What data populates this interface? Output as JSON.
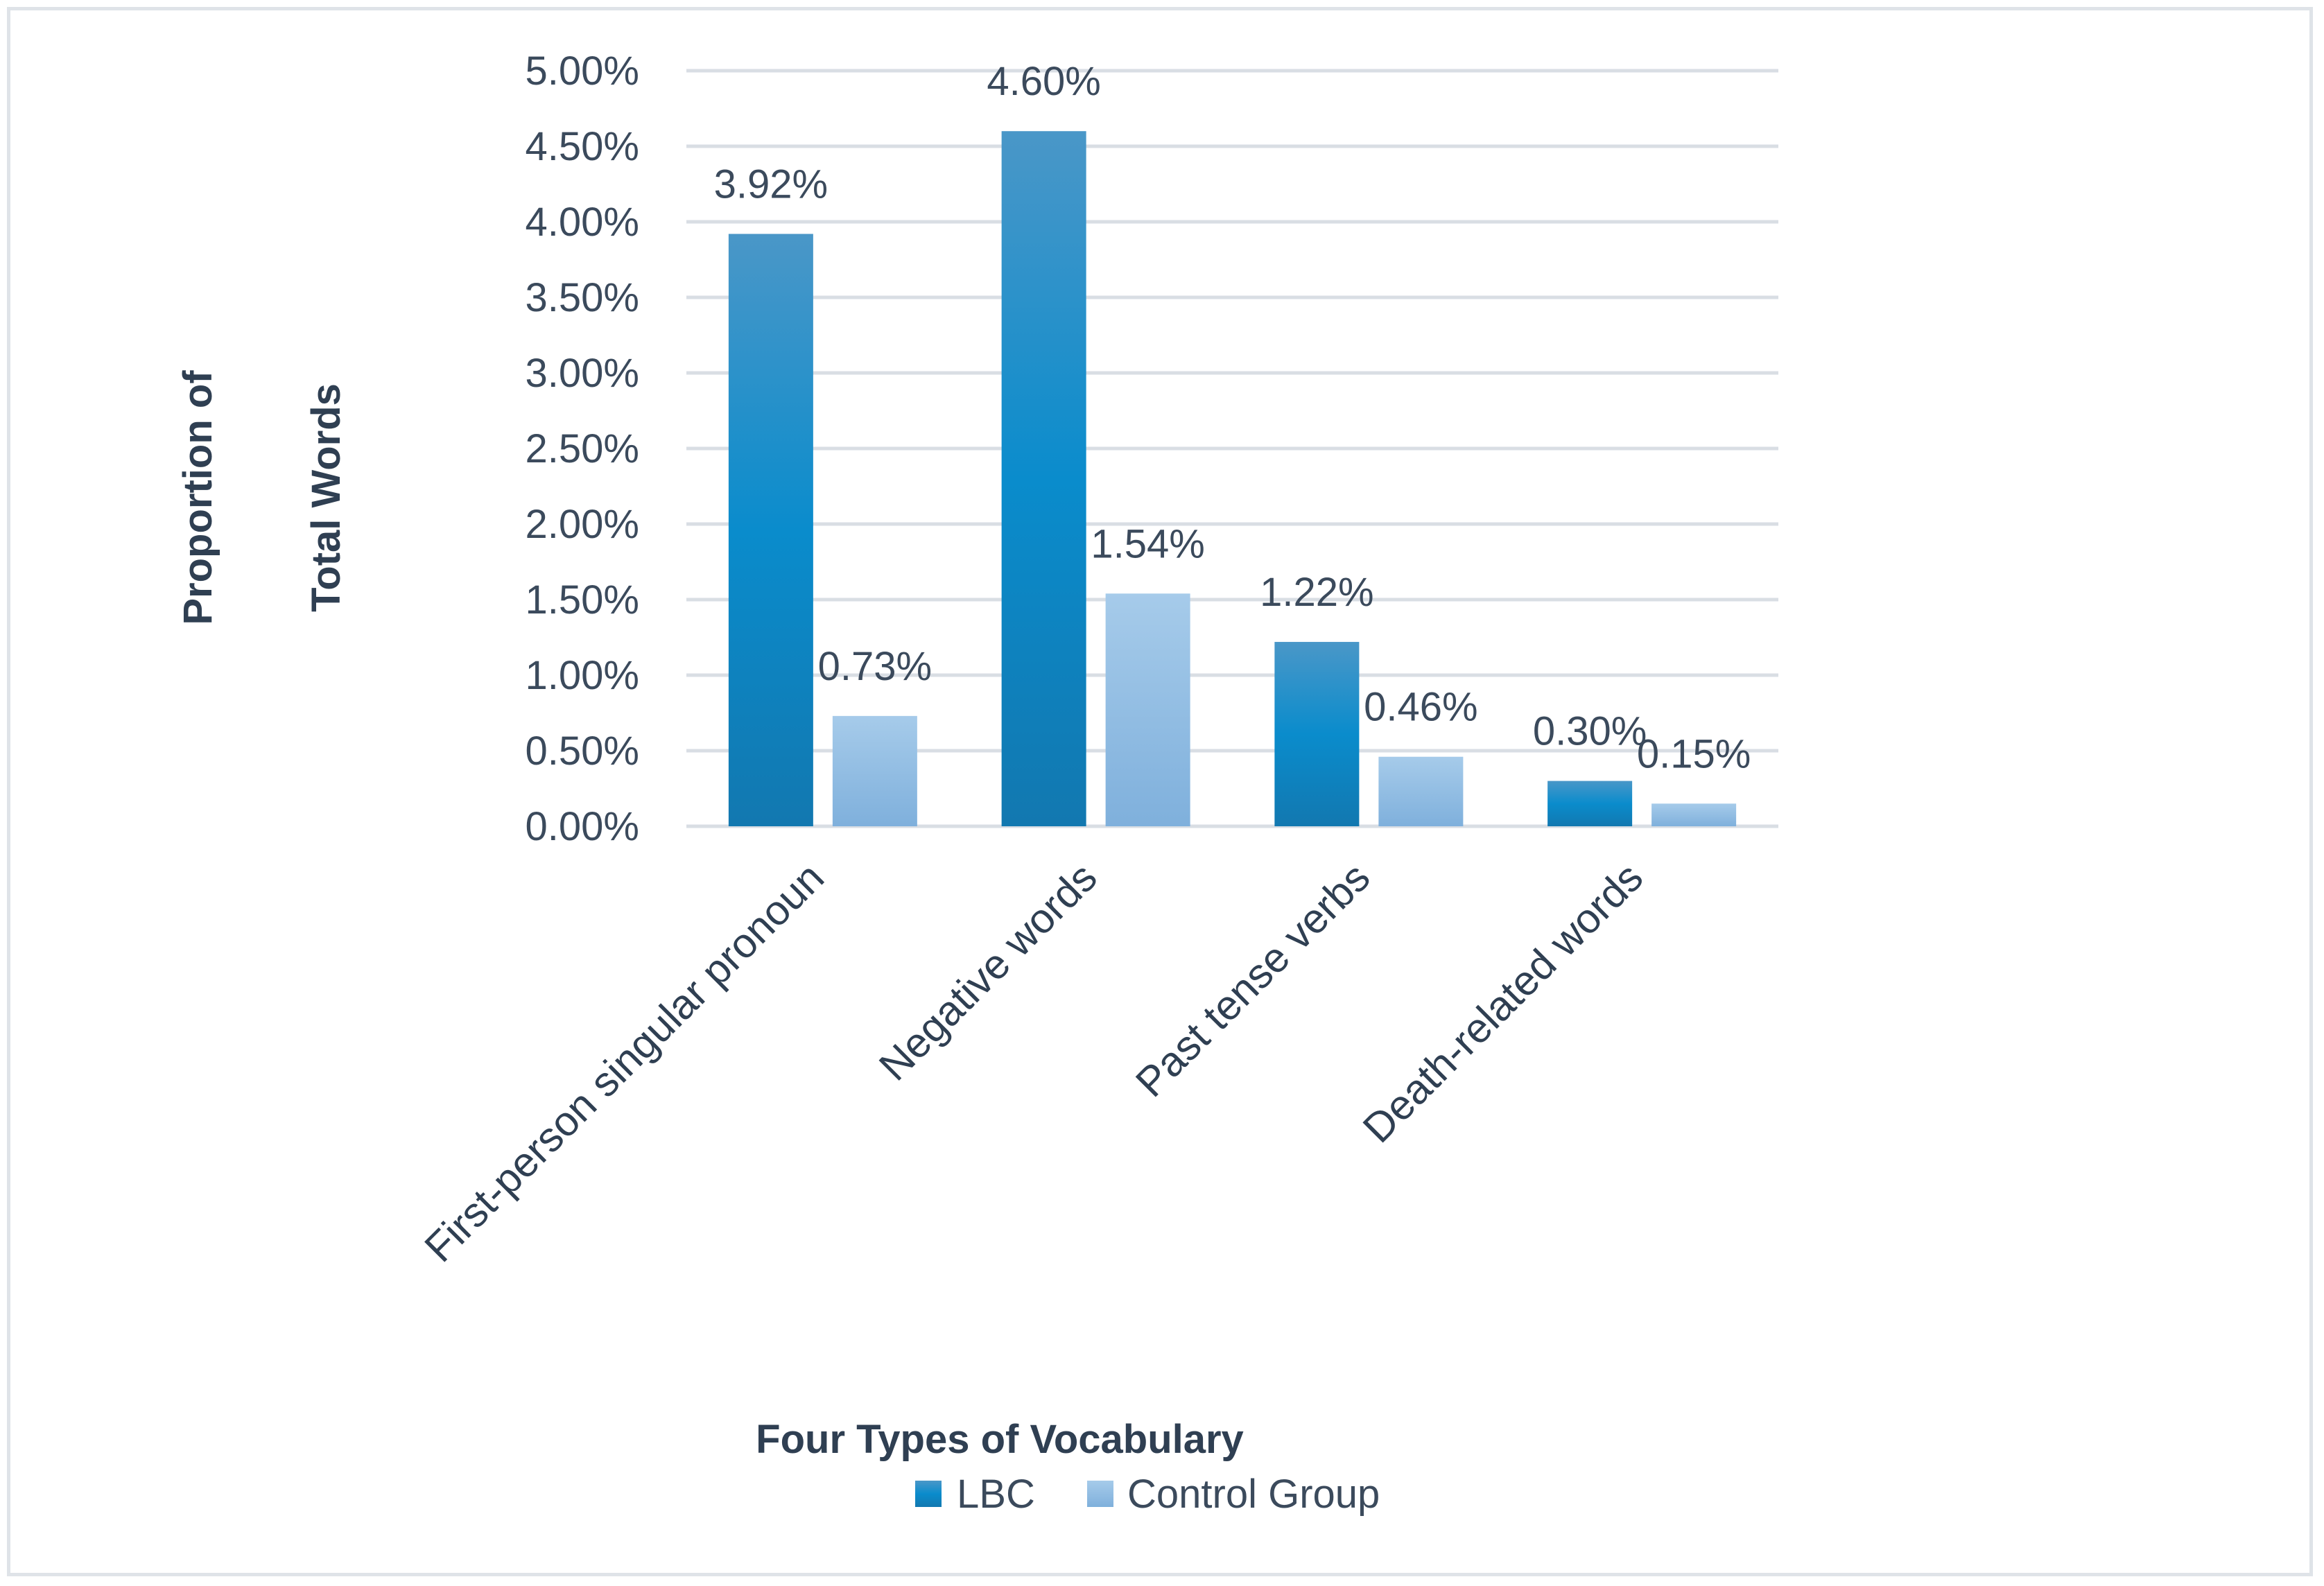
{
  "chart_data": {
    "type": "bar",
    "title": "",
    "categories": [
      "First-person singular pronoun",
      "Negative words",
      "Past tense verbs",
      "Death-related words"
    ],
    "series": [
      {
        "name": "LBC",
        "values": [
          3.92,
          4.6,
          1.22,
          0.3
        ],
        "labels": [
          "3.92%",
          "4.60%",
          "1.22%",
          "0.30%"
        ]
      },
      {
        "name": "Control Group",
        "values": [
          0.73,
          1.54,
          0.46,
          0.15
        ],
        "labels": [
          "0.73%",
          "1.54%",
          "0.46%",
          "0.15%"
        ]
      }
    ],
    "ylim": [
      0,
      5
    ],
    "yticks": [
      0,
      0.5,
      1,
      1.5,
      2,
      2.5,
      3,
      3.5,
      4,
      4.5,
      5
    ],
    "ytick_labels": [
      "0.00%",
      "0.50%",
      "1.00%",
      "1.50%",
      "2.00%",
      "2.50%",
      "3.00%",
      "3.50%",
      "4.00%",
      "4.50%",
      "5.00%"
    ],
    "ylabel_line1": "Proportion of",
    "ylabel_line2": "Total Words",
    "xlabel": "Four Types of Vocabulary",
    "grid": true,
    "legend": "bottom",
    "colors": {
      "lbc_top": "#4a97c8",
      "lbc_mid": "#0a8ccc",
      "lbc_bottom": "#1278b0",
      "control_top": "#a6cbea",
      "control_bottom": "#7fb0dc",
      "grid": "#d9dee4",
      "text": "#3b4a5c"
    }
  }
}
